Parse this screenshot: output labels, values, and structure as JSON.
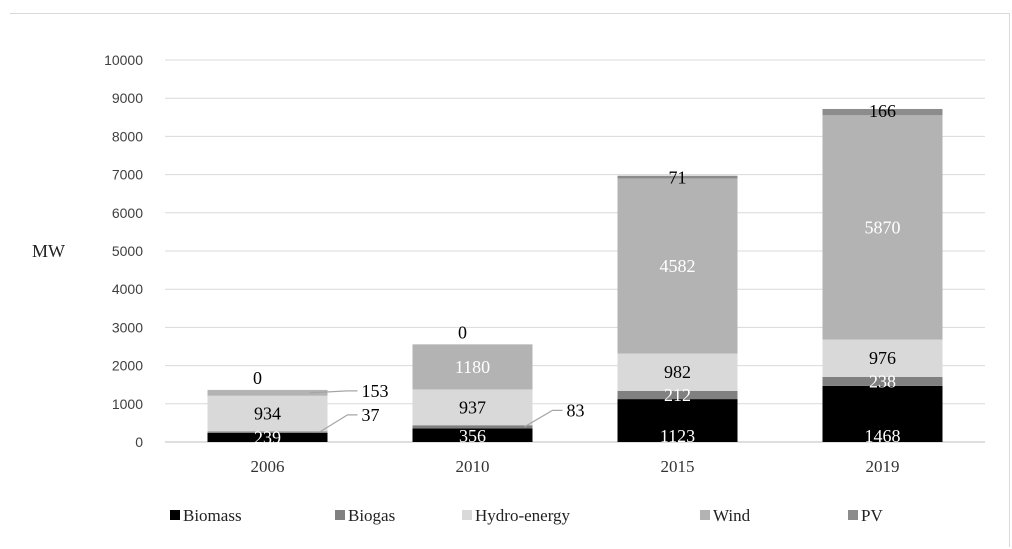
{
  "chart_data": {
    "type": "bar",
    "stacked": true,
    "ylabel": "MW",
    "ylim": [
      0,
      10000
    ],
    "yticks": [
      0,
      1000,
      2000,
      3000,
      4000,
      5000,
      6000,
      7000,
      8000,
      9000,
      10000
    ],
    "categories": [
      "2006",
      "2010",
      "2015",
      "2019"
    ],
    "grid": true,
    "legend_position": "bottom",
    "series": [
      {
        "name": "Biomass",
        "color": "#000000",
        "values": [
          239,
          356,
          1123,
          1468
        ]
      },
      {
        "name": "Biogas",
        "color": "#808080",
        "values": [
          37,
          83,
          212,
          238
        ]
      },
      {
        "name": "Hydro-energy",
        "color": "#d9d9d9",
        "values": [
          934,
          937,
          982,
          976
        ]
      },
      {
        "name": "Wind",
        "color": "#b3b3b3",
        "values": [
          153,
          1180,
          4582,
          5870
        ]
      },
      {
        "name": "PV",
        "color": "#8c8c8c",
        "values": [
          0,
          0,
          71,
          166
        ]
      }
    ]
  }
}
